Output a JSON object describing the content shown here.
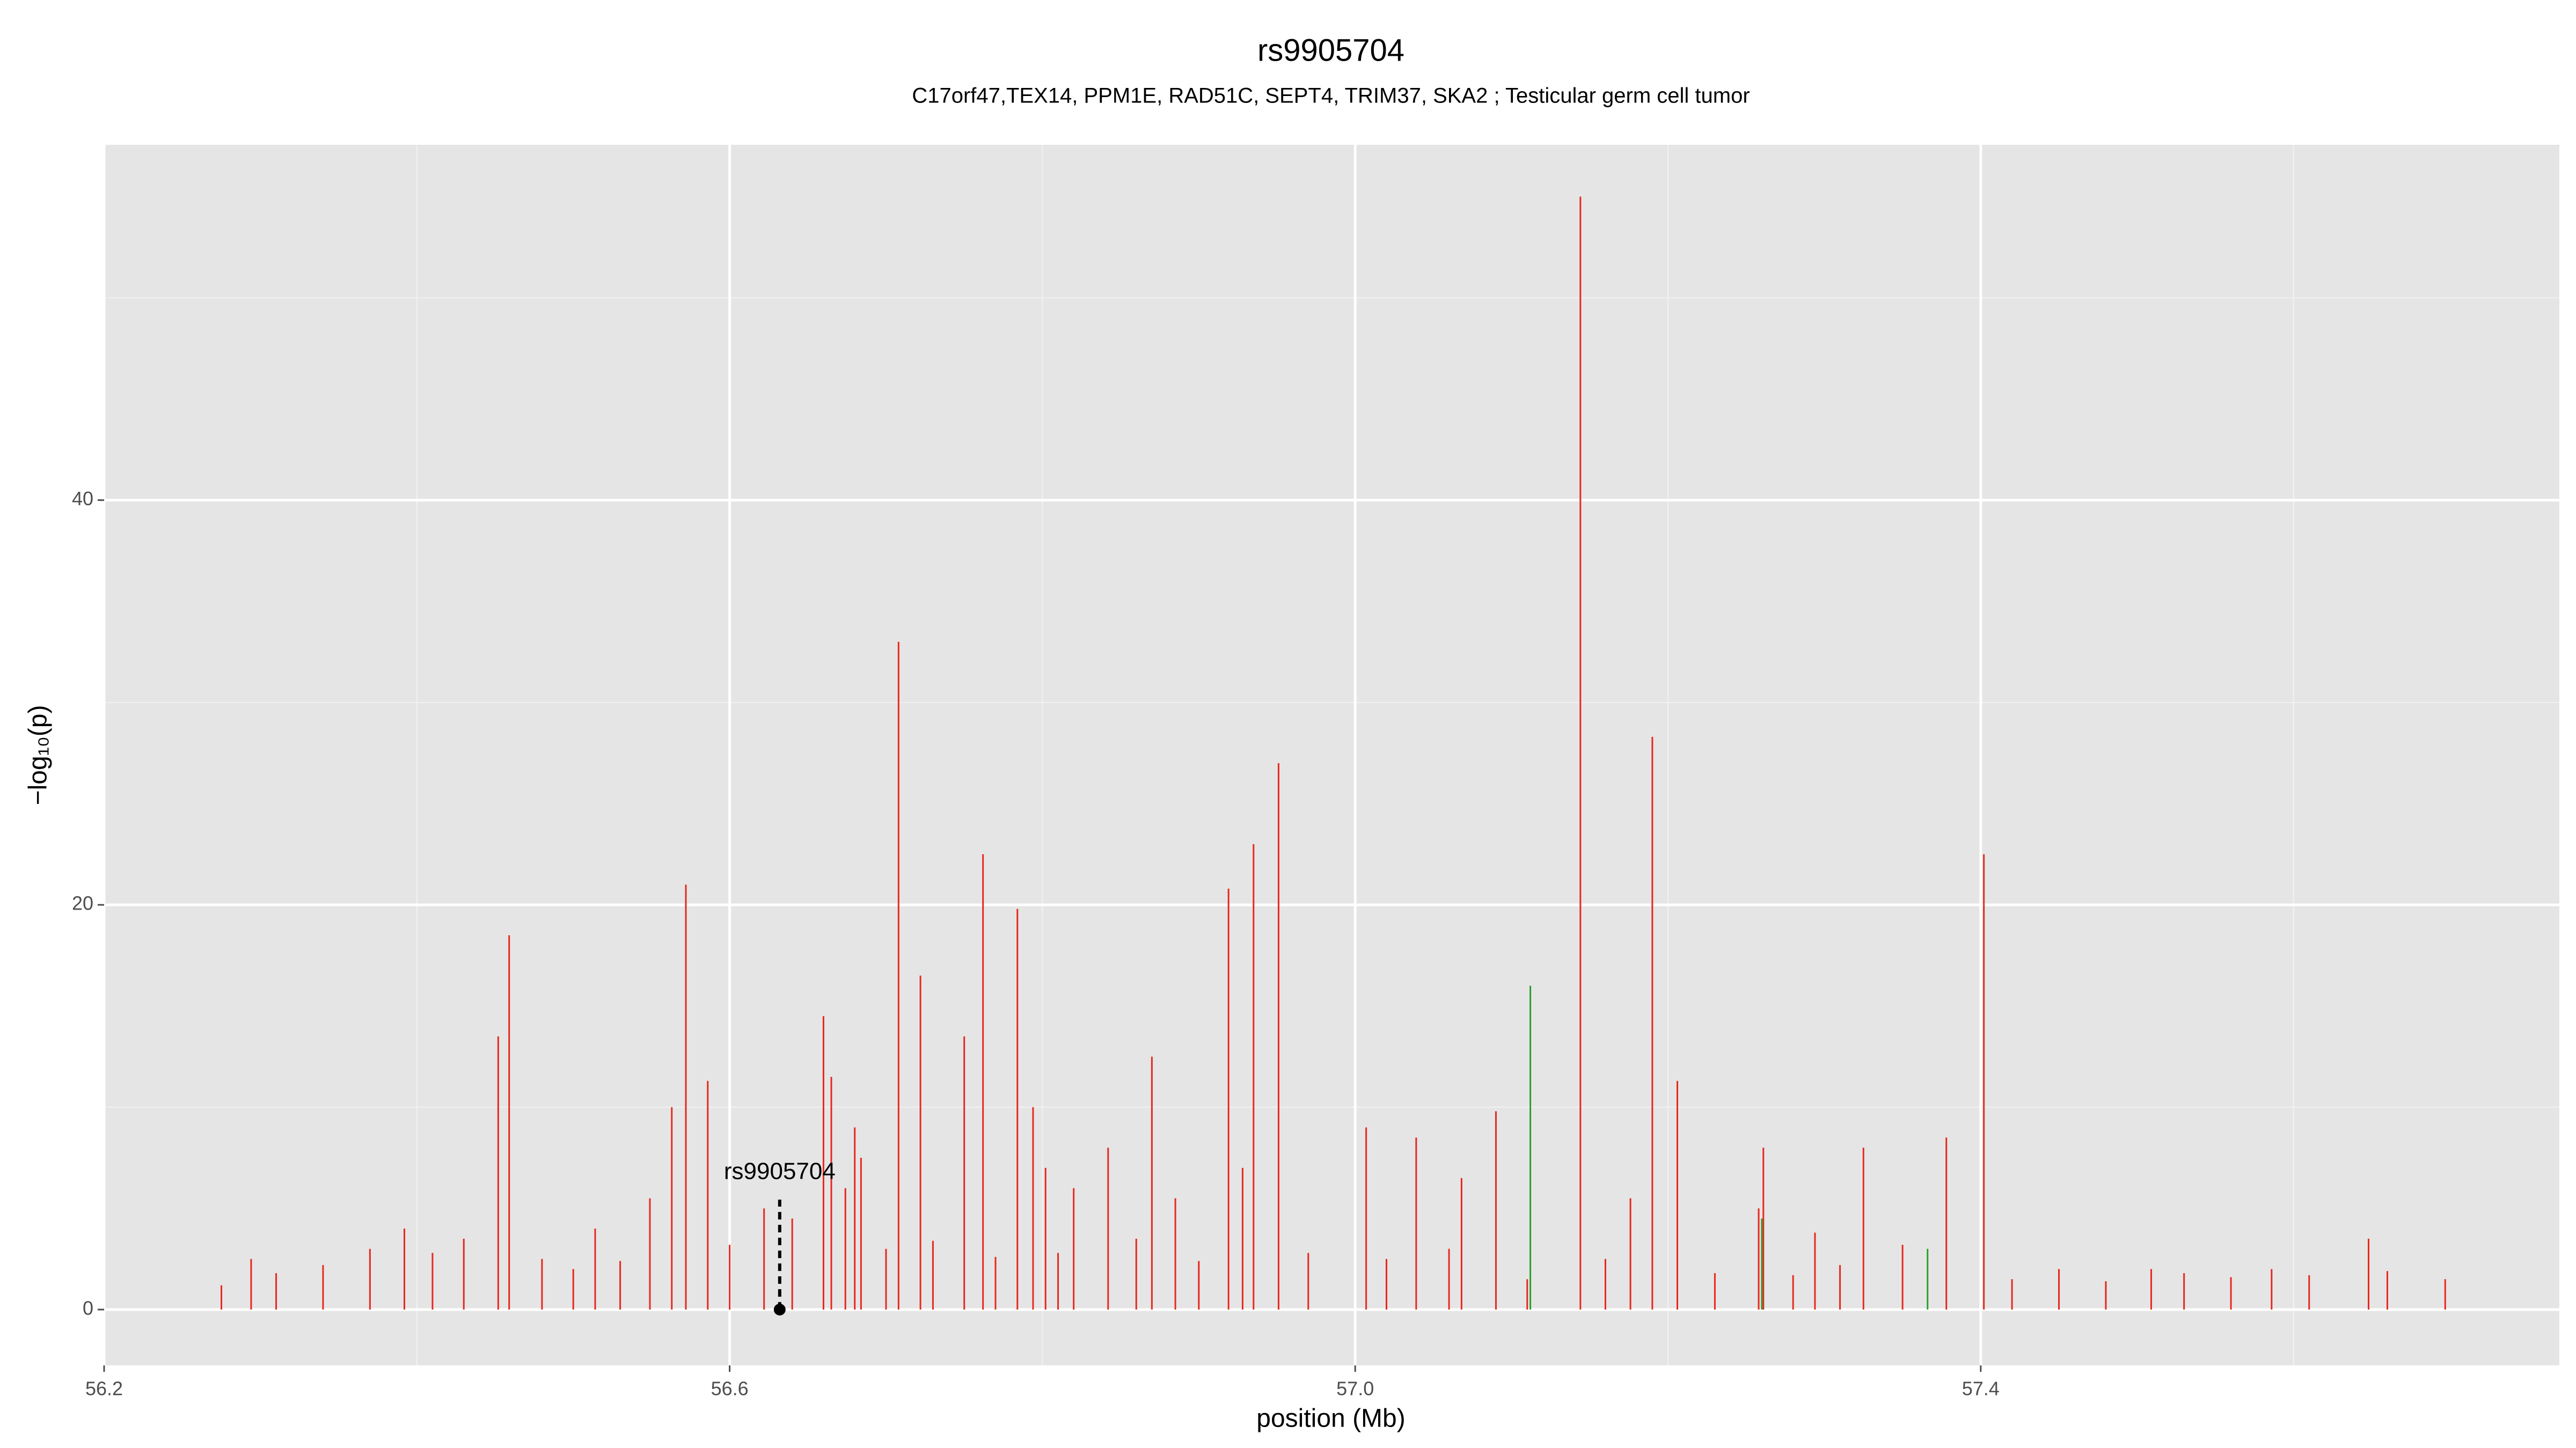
{
  "chart_data": {
    "type": "spike",
    "title": "rs9905704",
    "subtitle": "C17orf47,TEX14, PPM1E, RAD51C, SEPT4, TRIM37, SKA2 ; Testicular germ cell tumor",
    "xlabel": "position (Mb)",
    "ylabel": "−log₁₀(p)",
    "xlim": [
      56.2,
      57.77
    ],
    "ylim": [
      -2.76,
      57.56
    ],
    "xticks": [
      56.2,
      56.6,
      {
        "value": 57,
        "label": "57.0"
      },
      57.4
    ],
    "yticks": [
      0,
      20,
      40
    ],
    "xminor": [
      56.4,
      56.8,
      57.2,
      57.6
    ],
    "yminor": [
      10,
      30,
      50
    ],
    "grid": true,
    "series": [
      {
        "color": "#e8281e",
        "x": [
          56.294,
          56.392,
          56.452,
          56.459,
          56.514,
          56.549,
          56.563,
          56.572,
          56.586,
          56.622,
          56.66,
          56.665,
          56.674,
          56.68,
          56.684,
          56.708,
          56.722,
          56.75,
          56.762,
          56.784,
          56.794,
          56.802,
          56.82,
          56.842,
          56.87,
          56.885,
          56.919,
          56.928,
          56.935,
          56.951,
          57.007,
          57.039,
          57.068,
          57.09,
          57.144,
          57.176,
          57.19,
          57.206,
          57.258,
          57.261,
          57.294,
          57.325,
          57.378,
          57.402,
          57.45,
          57.509,
          57.586,
          57.648,
          57.697,
          56.275,
          56.31,
          56.34,
          56.37,
          56.41,
          56.43,
          56.48,
          56.5,
          56.53,
          56.6,
          56.64,
          56.7,
          56.73,
          56.77,
          56.81,
          56.86,
          56.9,
          56.97,
          57.02,
          57.06,
          57.11,
          57.16,
          57.23,
          57.28,
          57.31,
          57.35,
          57.42,
          57.48,
          57.53,
          57.56,
          57.61,
          57.66
        ],
        "values": [
          2.5,
          4,
          13.5,
          18.5,
          4,
          5.5,
          10,
          21,
          11.3,
          5,
          14.5,
          11.5,
          6,
          9,
          7.5,
          33,
          16.5,
          13.5,
          22.5,
          19.8,
          10,
          7,
          6,
          8,
          12.5,
          5.5,
          20.8,
          7,
          23,
          27,
          9,
          8.5,
          6.5,
          9.8,
          55,
          5.5,
          28.3,
          11.3,
          5,
          8,
          3.8,
          8,
          8.5,
          22.5,
          2,
          2,
          2,
          3.5,
          1.5,
          1.2,
          1.8,
          2.2,
          3,
          2.8,
          3.5,
          2.5,
          2,
          2.4,
          3.2,
          4.5,
          3,
          3.4,
          2.6,
          2.8,
          3.5,
          2.4,
          2.8,
          2.5,
          3,
          1.5,
          2.5,
          1.8,
          1.7,
          2.2,
          3.2,
          1.5,
          1.4,
          1.8,
          1.6,
          1.7,
          1.9
        ]
      },
      {
        "color": "#2ca02c",
        "x": [
          57.112,
          57.366,
          57.26
        ],
        "values": [
          16,
          3,
          4.5
        ]
      }
    ],
    "annotation": {
      "label": "rs9905704",
      "x": 56.632,
      "y": 0
    }
  }
}
